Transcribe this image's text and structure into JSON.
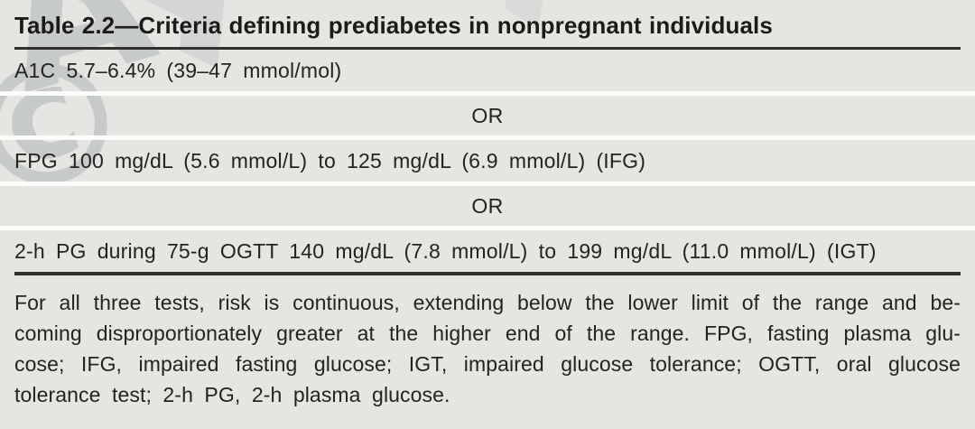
{
  "table": {
    "title": "Table 2.2—Criteria defining prediabetes in nonpregnant individuals",
    "or_label": "OR",
    "rows": [
      {
        "text": "A1C 5.7–6.4% (39–47 mmol/mol)"
      },
      {
        "text": "FPG 100 mg/dL (5.6 mmol/L) to 125 mg/dL (6.9 mmol/L) (IFG)"
      },
      {
        "text": "2-h PG during 75-g OGTT 140 mg/dL (7.8 mmol/L) to 199 mg/dL (11.0 mmol/L) (IGT)"
      }
    ]
  },
  "footnote": {
    "lines": [
      "For all three tests, risk is continuous, extending below the lower limit of the range and be-",
      "coming disproportionately greater at the higher end of the range. FPG, fasting plasma glu-",
      "cose; IFG, impaired fasting glucose; IGT, impaired glucose tolerance; OGTT, oral glucose",
      "tolerance test; 2-h PG, 2-h plasma glucose."
    ]
  },
  "watermark": {
    "chars": [
      "©",
      "A",
      "A",
      "A"
    ]
  },
  "colors": {
    "page_background": "#e6e5e2",
    "row_separator": "#fcfcfb",
    "rule": "#33312d",
    "text": "#242320",
    "watermark": "#c6cacb"
  }
}
